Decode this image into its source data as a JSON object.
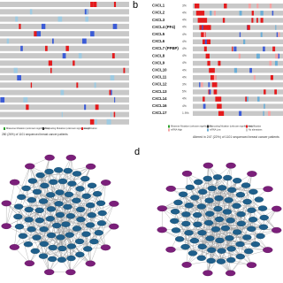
{
  "panels": {
    "b": {
      "label": "b",
      "genes": [
        "CXCL1",
        "CXCL2",
        "CXCL3",
        "CXCL4 (PF4)",
        "CXCL5",
        "CXCL6",
        "CXCL7 (PPBP)",
        "CXCL8",
        "CXCL9",
        "CXCL10",
        "CXCL11",
        "CXCL12",
        "CXCL13",
        "CXCL14",
        "CXCL16",
        "CXCL17"
      ],
      "percents": [
        "3%",
        "4%",
        "4%",
        "4%",
        "4%",
        "4%",
        "4%",
        "4%",
        "4%",
        "4%",
        "4%",
        "3%",
        "5%",
        "4%",
        "4%",
        "1.9%"
      ],
      "legend": [
        "Missense Mutation (unknown significance)",
        "Truncating Mutation (unknown significance)",
        "Amplification",
        "mRNA High",
        "mRNA Low",
        "No alterations"
      ],
      "footer": "Altered in 247 (22%) of 1101 sequenced breast cancer patients"
    },
    "a": {
      "legend": [
        "Missense Mutation (unknown significance)",
        "Truncating Mutation (unknown significance)",
        "Amplification"
      ],
      "footer": "280 (26%) of 1101 sequenced breast cancer patients"
    },
    "d": {
      "label": "d"
    }
  }
}
